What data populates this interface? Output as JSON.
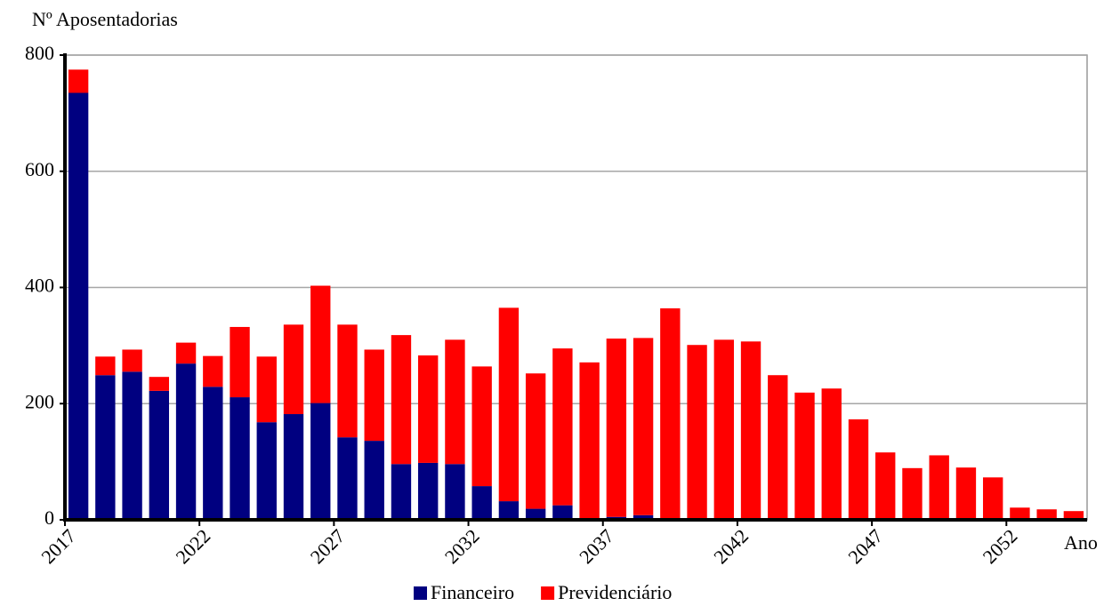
{
  "chart_data": {
    "type": "stacked_bar",
    "y_label": "Nº Aposentadorias",
    "x_label": "Ano",
    "categories": [
      "2017",
      null,
      null,
      null,
      null,
      "2022",
      null,
      null,
      null,
      null,
      "2027",
      null,
      null,
      null,
      null,
      "2032",
      null,
      null,
      null,
      null,
      "2037",
      null,
      null,
      null,
      null,
      "2042",
      null,
      null,
      null,
      null,
      "2047",
      null,
      null,
      null,
      null,
      "2052",
      null,
      null
    ],
    "series": [
      {
        "name": "Financeiro",
        "color": "#000080",
        "values": [
          735,
          249,
          255,
          222,
          269,
          229,
          211,
          168,
          182,
          201,
          142,
          136,
          96,
          98,
          96,
          58,
          32,
          19,
          25,
          3,
          5,
          8,
          0,
          0,
          0,
          0,
          0,
          0,
          0,
          0,
          0,
          0,
          0,
          0,
          0,
          0,
          0,
          0
        ]
      },
      {
        "name": "Previdenciário",
        "color": "#ff0000",
        "values": [
          40,
          32,
          38,
          24,
          36,
          53,
          121,
          113,
          154,
          202,
          194,
          157,
          222,
          185,
          214,
          206,
          333,
          233,
          270,
          268,
          307,
          305,
          364,
          301,
          310,
          307,
          249,
          219,
          226,
          173,
          116,
          89,
          111,
          90,
          73,
          21,
          18,
          15
        ]
      }
    ],
    "ylim": [
      0,
      800
    ],
    "yticks": [
      0,
      200,
      400,
      600,
      800
    ],
    "grid": true
  }
}
